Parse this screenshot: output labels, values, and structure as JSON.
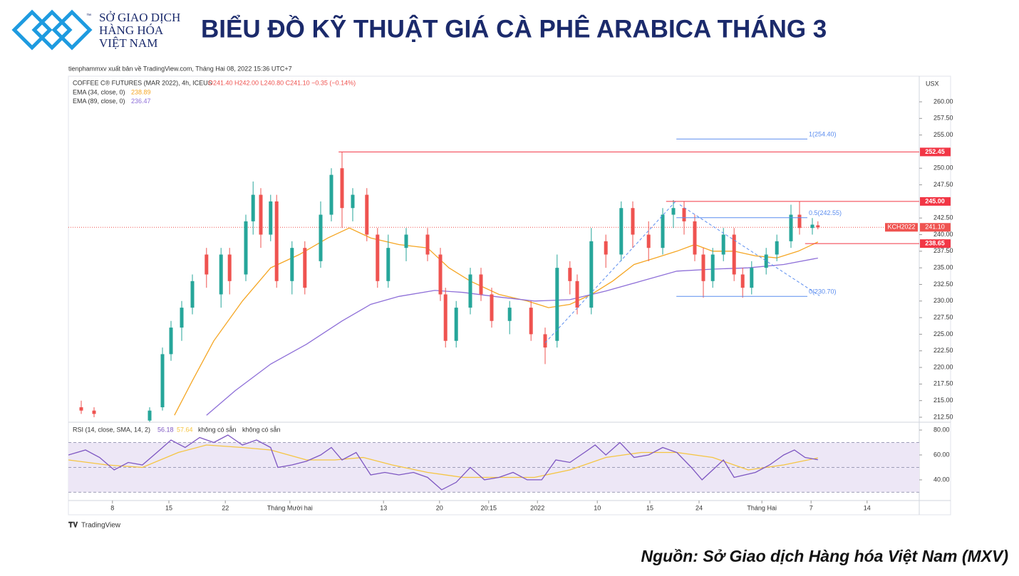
{
  "header": {
    "logo": [
      "SỞ GIAO DỊCH",
      "HÀNG HÓA",
      "VIỆT NAM"
    ],
    "trademark": "™",
    "title": "BIỂU ĐỒ KỸ THUẬT GIÁ CÀ PHÊ ARABICA THÁNG 3"
  },
  "publisher": "tienphammxv xuất bản về TradingView.com, Tháng Hai 08, 2022 15:36 UTC+7",
  "footer": "Nguồn: Sở Giao dịch Hàng hóa Việt Nam (MXV)",
  "watermark": "TradingView",
  "chart_data": [
    {
      "type": "candlestick",
      "title": "COFFEE C® FUTURES (MAR 2022), 4h, ICEUS",
      "ohlc_text": "O241.40 H242.00 L240.80 C241.10 −0.35 (−0.14%)",
      "axis_unit": "USX",
      "up_color": "#26a69a",
      "down_color": "#ef5350",
      "x": [
        3,
        6,
        19,
        22,
        24,
        26.5,
        29,
        32.3,
        35.7,
        37.7,
        41.5,
        43.2,
        45,
        47.3,
        48.7,
        52.3,
        55.3,
        59,
        61.5,
        64,
        66.5,
        69.8,
        72.3,
        74.8,
        79,
        84,
        87,
        88.2,
        90.7,
        94,
        96.5,
        99,
        103.2,
        108.2,
        111.5,
        114.3,
        117.3,
        119,
        122.3,
        125.7,
        129.3,
        132,
        135.7,
        139,
        141.5,
        144,
        146.5,
        148.5,
        150.7,
        153.2,
        155.7,
        157.7,
        159.8,
        163.2,
        165.7,
        169,
        171,
        174,
        175.3
      ],
      "open": [
        214,
        213.5,
        212,
        214,
        222,
        226,
        229,
        237,
        231,
        237,
        234,
        242,
        246,
        240,
        245,
        233,
        238,
        236,
        243,
        250,
        244,
        246,
        240,
        233,
        238,
        240,
        237,
        231,
        224,
        229,
        234,
        231,
        227,
        229,
        225,
        224,
        235,
        233,
        229,
        239,
        237,
        244,
        240,
        238,
        243,
        244,
        242,
        237,
        233,
        237,
        240,
        234,
        232,
        235,
        237,
        239,
        243,
        241,
        241.4
      ],
      "high": [
        215,
        214,
        214,
        223,
        227,
        230,
        234,
        238,
        238,
        238,
        243,
        248,
        247,
        246,
        246,
        239,
        239,
        245,
        250,
        252.4,
        247,
        247,
        241,
        240,
        241,
        241,
        238,
        232,
        230,
        235,
        235,
        232,
        230,
        230,
        226,
        237,
        236,
        234,
        241,
        240,
        245,
        245,
        242,
        244,
        245.2,
        245,
        243,
        238,
        238,
        241,
        241,
        235,
        236,
        238,
        240,
        244.5,
        245,
        242.5,
        242
      ],
      "low": [
        213,
        212.5,
        211.8,
        213.5,
        221,
        224,
        228,
        232,
        229,
        231,
        233,
        240,
        238,
        239,
        232,
        231,
        231,
        235,
        242,
        241,
        242,
        239,
        232,
        232,
        236,
        236,
        230,
        223,
        223,
        228,
        230,
        226,
        225,
        224,
        220.5,
        223,
        231,
        228,
        228,
        235,
        236,
        238,
        236,
        237,
        241,
        240,
        236,
        230.5,
        232,
        236,
        233,
        230.5,
        231,
        234,
        236,
        238,
        240,
        240,
        240.8
      ],
      "close": [
        213.5,
        213,
        213.5,
        222,
        226,
        229,
        233,
        234,
        237,
        233,
        242,
        246,
        240,
        245,
        233,
        238,
        232,
        243,
        249,
        244,
        246,
        240,
        233,
        238,
        240,
        237,
        231,
        224,
        229,
        234,
        231,
        227,
        229,
        225,
        223,
        235,
        233,
        229,
        239,
        237,
        244,
        240,
        238,
        243,
        244,
        242,
        237,
        233,
        237,
        240,
        234,
        232,
        235,
        237,
        239,
        243,
        241,
        241.5,
        241.1
      ],
      "series": [
        {
          "name": "EMA (34, close, 0)",
          "last": 238.89,
          "color": "#f5a623",
          "x": [
            24.8,
            29,
            34,
            40.7,
            47.3,
            54,
            60.7,
            65.7,
            70.7,
            77.3,
            84,
            89,
            94,
            100.7,
            107.3,
            112.3,
            117.3,
            122.3,
            127.3,
            132.3,
            137.3,
            142.3,
            146.5,
            150.7,
            155.7,
            160.7,
            165.7,
            170.7,
            175.3
          ],
          "values": [
            212.8,
            218,
            224,
            230,
            235,
            237,
            239.5,
            241,
            239.5,
            238.5,
            238,
            235,
            233,
            231,
            230,
            229,
            229.5,
            231,
            233,
            235.5,
            236.5,
            237.5,
            238.5,
            237.5,
            237.5,
            236.8,
            236.5,
            237.5,
            238.89
          ]
        },
        {
          "name": "EMA (89, close, 0)",
          "last": 236.47,
          "color": "#8e6fd8",
          "x": [
            32.3,
            39,
            47.3,
            55.7,
            64,
            70.7,
            77.3,
            85.7,
            92.3,
            100.7,
            109,
            117.3,
            125.7,
            134,
            142.3,
            150.7,
            159,
            167.3,
            175.3
          ],
          "values": [
            212.8,
            216.5,
            220.5,
            223.5,
            227,
            229.5,
            230.7,
            231.6,
            231.3,
            230.6,
            230,
            230.2,
            231.5,
            233,
            234.5,
            234.8,
            235,
            235.5,
            236.47
          ]
        }
      ],
      "levels": [
        {
          "value": 252.45,
          "label": "252.45",
          "from": 63.2
        },
        {
          "value": 245,
          "label": "245.00",
          "from": 139.8
        },
        {
          "value": 238.65,
          "label": "238.65",
          "from": 172.3
        }
      ],
      "level_color": "#f23645",
      "fib": {
        "x": [
          142.2,
          176.5
        ],
        "color": "#5b8def",
        "levels": [
          {
            "value": 254.4,
            "label": "1(254.40)"
          },
          {
            "value": 242.55,
            "label": "0.5(242.55)"
          },
          {
            "value": 230.7,
            "label": "0(230.70)"
          }
        ]
      },
      "trendlines": [
        {
          "x": [
            111.5,
            142
          ],
          "values": [
            223.7,
            245
          ]
        },
        {
          "x": [
            143,
            175.7
          ],
          "values": [
            244.5,
            230.8
          ]
        }
      ],
      "last_price": {
        "symbol": "KCH2022",
        "value": 241.1,
        "label": "241.10"
      },
      "xlim": [
        0,
        199
      ],
      "ylim": [
        211.75,
        263.86
      ],
      "yticks": [
        {
          "value": 212.5,
          "label": "212.50"
        },
        {
          "value": 215,
          "label": "215.00"
        },
        {
          "value": 217.5,
          "label": "217.50"
        },
        {
          "value": 220,
          "label": "220.00"
        },
        {
          "value": 222.5,
          "label": "222.50"
        },
        {
          "value": 225,
          "label": "225.00"
        },
        {
          "value": 227.5,
          "label": "227.50"
        },
        {
          "value": 230,
          "label": "230.00"
        },
        {
          "value": 232.5,
          "label": "232.50"
        },
        {
          "value": 235,
          "label": "235.00"
        },
        {
          "value": 237.5,
          "label": "237.50"
        },
        {
          "value": 240,
          "label": "240.00"
        },
        {
          "value": 242.5,
          "label": "242.50"
        },
        {
          "value": 247.5,
          "label": "247.50"
        },
        {
          "value": 250,
          "label": "250.00"
        },
        {
          "value": 255,
          "label": "255.00"
        },
        {
          "value": 257.5,
          "label": "257.50"
        },
        {
          "value": 260,
          "label": "260.00"
        }
      ],
      "xticks": [
        {
          "value": 10.3,
          "label": "8"
        },
        {
          "value": 23.5,
          "label": "15"
        },
        {
          "value": 36.7,
          "label": "22"
        },
        {
          "value": 51.8,
          "label": "Tháng Mười hai"
        },
        {
          "value": 73.7,
          "label": "13"
        },
        {
          "value": 86.8,
          "label": "20"
        },
        {
          "value": 98.3,
          "label": "20:15"
        },
        {
          "value": 109.7,
          "label": "2022"
        },
        {
          "value": 123.7,
          "label": "10"
        },
        {
          "value": 136,
          "label": "15"
        },
        {
          "value": 147.5,
          "label": "24"
        },
        {
          "value": 162.2,
          "label": "Tháng Hai"
        },
        {
          "value": 173.7,
          "label": "7"
        },
        {
          "value": 186.8,
          "label": "14"
        }
      ]
    },
    {
      "type": "line",
      "title": "RSI (14, close, SMA, 14, 2)",
      "na_labels": [
        "không có sẵn",
        "không có sẵn"
      ],
      "series": [
        {
          "name": "RSI",
          "last": 56.18,
          "color": "#7e57c2",
          "x": [
            0,
            4,
            7.3,
            10.7,
            14,
            17.3,
            20.7,
            24,
            27.3,
            30.7,
            34,
            37.3,
            40.7,
            44,
            47.3,
            49,
            52.3,
            55.7,
            59,
            61.5,
            64,
            67.3,
            70.7,
            74,
            77.3,
            80.7,
            84,
            87.3,
            90.7,
            94,
            97.3,
            100.7,
            104,
            107.3,
            110.7,
            114,
            117.3,
            120.7,
            123.2,
            125.7,
            129,
            132.3,
            135.7,
            139,
            142.3,
            145.7,
            148.2,
            150.7,
            153.2,
            155.7,
            158.2,
            160.7,
            164,
            167.3,
            169.8,
            172.3,
            175.3
          ],
          "values": [
            60,
            64,
            58,
            48,
            54,
            52,
            62,
            72,
            66,
            74,
            70,
            76,
            68,
            72,
            66,
            50,
            52,
            55,
            60,
            66,
            56,
            62,
            44,
            46,
            44,
            46,
            42,
            32,
            38,
            50,
            40,
            42,
            46,
            40,
            40,
            56,
            54,
            62,
            68,
            60,
            70,
            58,
            60,
            66,
            62,
            50,
            40,
            48,
            56,
            42,
            44,
            46,
            52,
            60,
            64,
            58,
            56.18
          ]
        },
        {
          "name": "SMA",
          "last": 57.64,
          "color": "#f5c542",
          "x": [
            0,
            9,
            17.3,
            25.7,
            32.3,
            40.7,
            47.3,
            55.7,
            62.3,
            69,
            75.7,
            84,
            92.3,
            100.7,
            109,
            117.3,
            125.7,
            134,
            142.3,
            150.7,
            159,
            167.3,
            175.3
          ],
          "values": [
            56,
            52,
            50,
            62,
            68,
            66,
            64,
            56,
            56,
            58,
            52,
            46,
            42,
            42,
            42,
            48,
            58,
            62,
            62,
            58,
            48,
            52,
            57.64
          ]
        }
      ],
      "bands": [
        70,
        50,
        30
      ],
      "band_fill": "#ede7f6",
      "xlim": [
        0,
        199
      ],
      "ylim": [
        25.1,
        86.3
      ],
      "yticks": [
        {
          "value": 40,
          "label": "40.00"
        },
        {
          "value": 60,
          "label": "60.00"
        },
        {
          "value": 80,
          "label": "80.00"
        }
      ]
    }
  ]
}
